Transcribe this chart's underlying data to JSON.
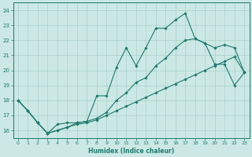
{
  "xlabel": "Humidex (Indice chaleur)",
  "bg_color": "#cce8e4",
  "grid_color": "#aad0cc",
  "line_color": "#1a7a6e",
  "xlim": [
    -0.5,
    23.5
  ],
  "ylim": [
    15.5,
    24.5
  ],
  "xticks": [
    0,
    1,
    2,
    3,
    4,
    5,
    6,
    7,
    8,
    9,
    10,
    11,
    12,
    13,
    14,
    15,
    16,
    17,
    18,
    19,
    20,
    21,
    22,
    23
  ],
  "yticks": [
    16,
    17,
    18,
    19,
    20,
    21,
    22,
    23,
    24
  ],
  "line1_x": [
    0,
    1,
    2,
    3,
    4,
    5,
    6,
    7,
    8,
    9,
    10,
    11,
    12,
    13,
    14,
    15,
    16,
    17,
    18,
    19,
    20,
    21,
    22,
    23
  ],
  "line1_y": [
    18.0,
    17.3,
    16.5,
    15.8,
    16.4,
    16.5,
    16.5,
    16.6,
    18.3,
    18.3,
    20.2,
    21.5,
    20.3,
    21.5,
    22.8,
    22.8,
    23.35,
    23.8,
    22.1,
    21.8,
    20.4,
    20.4,
    19.0,
    19.85
  ],
  "line2_x": [
    0,
    1,
    2,
    3,
    4,
    5,
    6,
    7,
    8,
    9,
    10,
    11,
    12,
    13,
    14,
    15,
    16,
    17,
    18,
    19,
    20,
    21,
    22,
    23
  ],
  "line2_y": [
    18.0,
    17.3,
    16.5,
    15.8,
    16.0,
    16.2,
    16.5,
    16.6,
    16.8,
    17.2,
    18.0,
    18.5,
    19.2,
    19.5,
    20.3,
    20.8,
    21.5,
    22.0,
    22.1,
    21.8,
    21.5,
    21.7,
    21.5,
    19.85
  ],
  "line3_x": [
    0,
    1,
    2,
    3,
    4,
    5,
    6,
    7,
    8,
    9,
    10,
    11,
    12,
    13,
    14,
    15,
    16,
    17,
    18,
    19,
    20,
    21,
    22,
    23
  ],
  "line3_y": [
    18.0,
    17.3,
    16.5,
    15.8,
    16.0,
    16.2,
    16.4,
    16.5,
    16.7,
    17.0,
    17.3,
    17.6,
    17.9,
    18.2,
    18.5,
    18.8,
    19.1,
    19.4,
    19.7,
    20.0,
    20.3,
    20.6,
    20.9,
    19.85
  ]
}
